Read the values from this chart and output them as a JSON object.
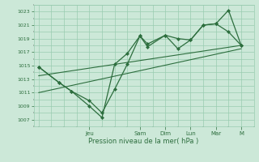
{
  "bg_color": "#cce8d8",
  "grid_color": "#99ccb0",
  "line_color": "#2d6e3e",
  "marker_color": "#2d6e3e",
  "xlabel": "Pression niveau de la mer( hPa )",
  "ylim": [
    1006,
    1024
  ],
  "yticks": [
    1007,
    1009,
    1011,
    1013,
    1015,
    1017,
    1019,
    1021,
    1023
  ],
  "x_day_labels": [
    "Jeu",
    "Sam",
    "Dim",
    "Lun",
    "Mar",
    "M"
  ],
  "x_day_positions": [
    2.0,
    4.0,
    5.0,
    6.0,
    7.0,
    8.0
  ],
  "xlim": [
    -0.2,
    8.5
  ],
  "series1_x": [
    0,
    0.8,
    1.3,
    2.0,
    2.5,
    3.0,
    3.5,
    4.0,
    4.3,
    5.0,
    5.5,
    6.0,
    6.5,
    7.0,
    7.5,
    8.0
  ],
  "series1_y": [
    1014.8,
    1012.5,
    1011.2,
    1009.0,
    1007.3,
    1015.2,
    1016.8,
    1019.4,
    1018.2,
    1019.5,
    1017.5,
    1018.8,
    1021.0,
    1021.2,
    1023.2,
    1018.0
  ],
  "series2_x": [
    0,
    0.8,
    1.3,
    2.0,
    2.5,
    3.0,
    3.5,
    4.0,
    4.3,
    5.0,
    5.5,
    6.0,
    6.5,
    7.0,
    7.5,
    8.0
  ],
  "series2_y": [
    1014.8,
    1012.5,
    1011.2,
    1009.8,
    1008.0,
    1011.5,
    1015.2,
    1019.4,
    1017.8,
    1019.5,
    1019.0,
    1018.8,
    1021.0,
    1021.2,
    1020.0,
    1018.0
  ],
  "trend_x": [
    0,
    8.0
  ],
  "trend_y": [
    1013.5,
    1018.0
  ],
  "trend2_x": [
    0,
    8.0
  ],
  "trend2_y": [
    1011.0,
    1017.5
  ],
  "ylabel_fontsize": 4.5,
  "xlabel_fontsize": 6.0,
  "xtick_fontsize": 5.0
}
